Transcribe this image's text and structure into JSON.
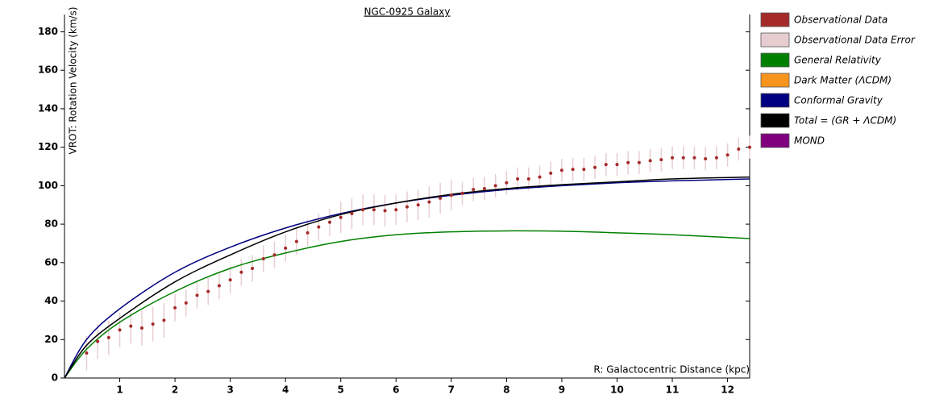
{
  "chart_data": {
    "type": "line",
    "title": "NGC-0925 Galaxy",
    "x_label": "R: Galactocentric Distance (kpc)",
    "y_label": "VROT: Rotation Velocity (km/s)",
    "xlim": [
      0,
      12.4
    ],
    "ylim": [
      0,
      189
    ],
    "xticks": [
      1,
      2,
      3,
      4,
      5,
      6,
      7,
      8,
      9,
      10,
      11,
      12
    ],
    "yticks": [
      0,
      20,
      40,
      60,
      80,
      100,
      120,
      140,
      160,
      180
    ],
    "series": [
      {
        "name": "Observational Data",
        "color": "#a52a2a",
        "x": [
          0.4,
          0.6,
          0.8,
          1.0,
          1.2,
          1.4,
          1.6,
          1.8,
          2.0,
          2.2,
          2.4,
          2.6,
          2.8,
          3.0,
          3.2,
          3.4,
          3.6,
          3.8,
          4.0,
          4.2,
          4.4,
          4.6,
          4.8,
          5.0,
          5.2,
          5.4,
          5.6,
          5.8,
          6.0,
          6.2,
          6.4,
          6.6,
          6.8,
          7.0,
          7.2,
          7.4,
          7.6,
          7.8,
          8.0,
          8.2,
          8.4,
          8.6,
          8.8,
          9.0,
          9.2,
          9.4,
          9.6,
          9.8,
          10.0,
          10.2,
          10.4,
          10.6,
          10.8,
          11.0,
          11.2,
          11.4,
          11.6,
          11.8,
          12.0,
          12.2,
          12.4
        ],
        "values": [
          13,
          19,
          21,
          25,
          27,
          26,
          28,
          30,
          36.5,
          39,
          43,
          45,
          48,
          51,
          55,
          57,
          62,
          64,
          67.5,
          71,
          75.5,
          78.5,
          81,
          83.5,
          85.5,
          87.5,
          87.5,
          87,
          87.5,
          89,
          90,
          91.5,
          93.5,
          95,
          96,
          98,
          98.5,
          100,
          101.5,
          103.5,
          103.5,
          104.5,
          106.5,
          108,
          108.5,
          108.5,
          109.5,
          111,
          111,
          112,
          112,
          113,
          113.5,
          114.5,
          114.5,
          114.5,
          114,
          114.5,
          116,
          119,
          120
        ]
      },
      {
        "name": "Observational Data Error",
        "color": "#e8cdd0",
        "values": [
          9,
          9,
          9,
          9,
          9,
          9,
          9,
          9,
          7,
          7,
          7,
          7,
          7,
          7,
          7,
          7,
          7,
          7,
          7,
          7,
          7,
          7,
          7,
          8,
          8,
          8,
          8,
          8,
          8,
          8,
          8,
          8,
          8,
          8,
          6,
          6,
          6,
          6,
          6,
          6,
          6,
          6,
          6,
          6,
          6,
          6,
          6,
          6,
          6,
          6,
          6,
          6,
          6,
          6,
          6,
          6,
          6,
          6,
          6,
          6,
          6
        ]
      },
      {
        "name": "General Relativity",
        "color": "#008000",
        "x": [
          0,
          0.4,
          1,
          2,
          3,
          4,
          5,
          6,
          7,
          8,
          9,
          10,
          11,
          12.4
        ],
        "values": [
          0,
          15,
          29,
          45,
          57,
          65,
          71,
          74.5,
          76,
          76.5,
          76.3,
          75.5,
          74.5,
          72.5
        ]
      },
      {
        "name": "Dark Matter (ΛCDM)",
        "color": "#f7941d",
        "x": [],
        "values": []
      },
      {
        "name": "Conformal Gravity",
        "color": "#000080",
        "x": [
          0,
          0.4,
          1,
          2,
          3,
          4,
          5,
          6,
          7,
          8,
          9,
          10,
          11,
          12.4
        ],
        "values": [
          0,
          20,
          36,
          55,
          68,
          78,
          85.5,
          91,
          95,
          98,
          100,
          101.5,
          102.5,
          103.5
        ]
      },
      {
        "name": "Total = (GR + ΛCDM)",
        "color": "#000000",
        "x": [
          0,
          0.4,
          1,
          2,
          3,
          4,
          5,
          6,
          7,
          8,
          9,
          10,
          11,
          12.4
        ],
        "values": [
          0,
          17,
          31,
          50,
          64,
          76,
          85,
          91,
          95.5,
          98.5,
          100.5,
          102,
          103.5,
          104.5
        ]
      },
      {
        "name": "MOND",
        "color": "#800080",
        "x": [],
        "values": []
      }
    ]
  }
}
